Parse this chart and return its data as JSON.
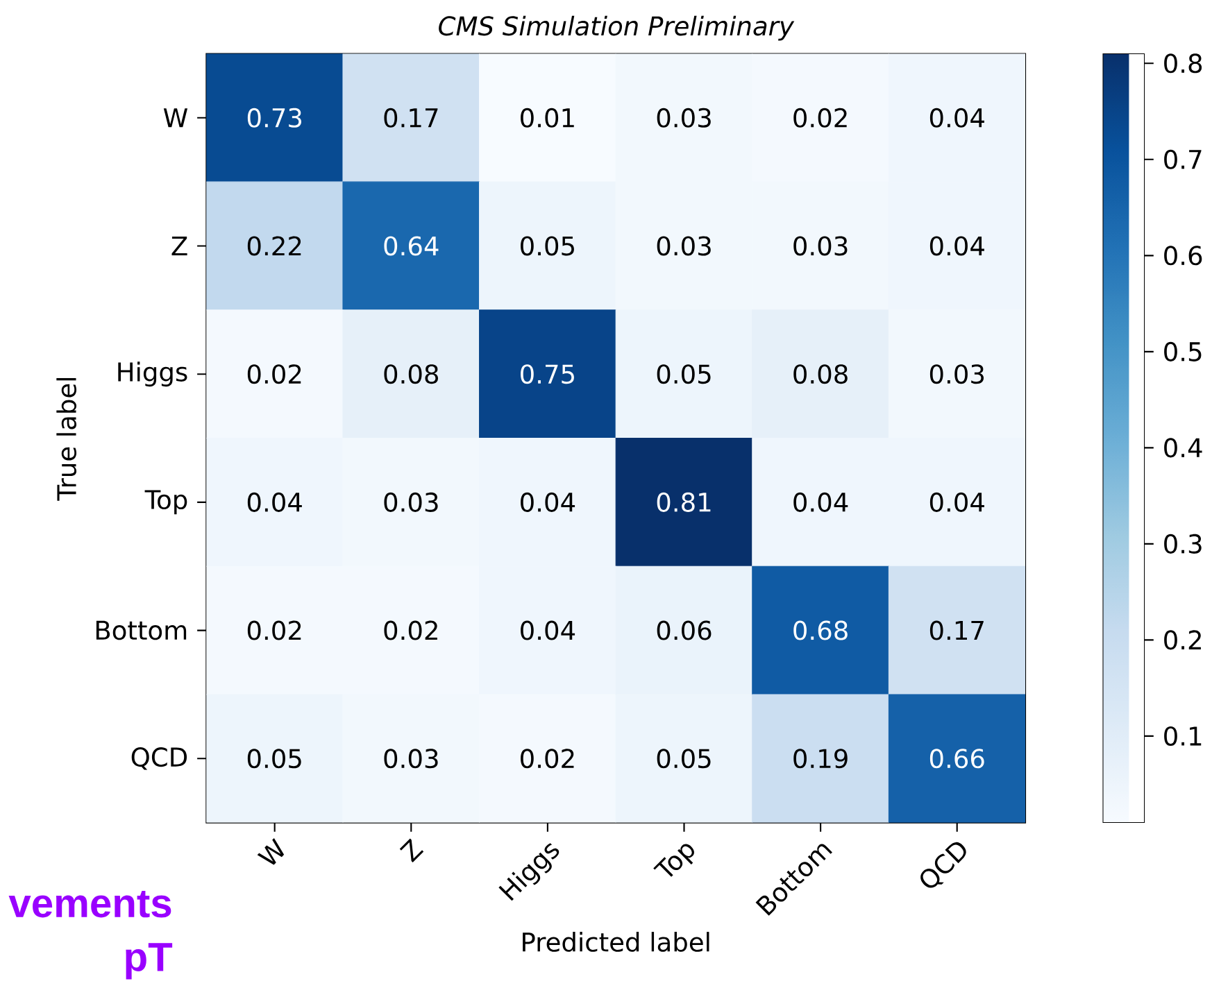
{
  "chart_data": {
    "type": "heatmap",
    "title": "CMS Simulation Preliminary",
    "categories": [
      "W",
      "Z",
      "Higgs",
      "Top",
      "Bottom",
      "QCD"
    ],
    "y_categories": [
      "W",
      "Z",
      "Higgs",
      "Top",
      "Bottom",
      "QCD"
    ],
    "cells": [
      [
        0.73,
        0.17,
        0.01,
        0.03,
        0.02,
        0.04
      ],
      [
        0.22,
        0.64,
        0.05,
        0.03,
        0.03,
        0.04
      ],
      [
        0.02,
        0.08,
        0.75,
        0.05,
        0.08,
        0.03
      ],
      [
        0.04,
        0.03,
        0.04,
        0.81,
        0.04,
        0.04
      ],
      [
        0.02,
        0.02,
        0.04,
        0.06,
        0.68,
        0.17
      ],
      [
        0.05,
        0.03,
        0.02,
        0.05,
        0.19,
        0.66
      ]
    ],
    "data_labels": true,
    "clim": [
      0.01,
      0.81
    ],
    "cticks": [
      0.1,
      0.2,
      0.3,
      0.4,
      0.5,
      0.6,
      0.7,
      0.8
    ],
    "xlabel": "Predicted label",
    "ylabel": "True label",
    "annotations": [
      "vements",
      "pT"
    ]
  }
}
